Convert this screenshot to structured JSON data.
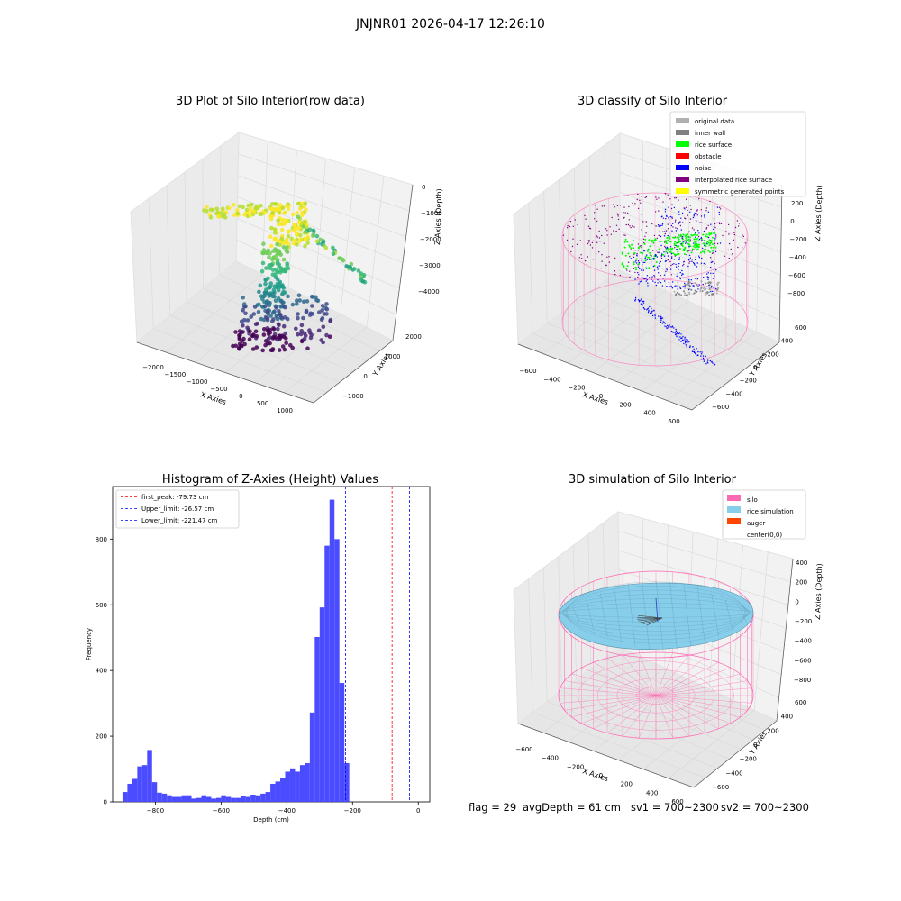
{
  "figure": {
    "suptitle": "JNJNR01 2026-04-17 12:26:10"
  },
  "footer": {
    "flag": "flag = 29",
    "avg_depth": "avgDepth = 61 cm",
    "sv1": "sv1 = 700~2300",
    "sv2": "sv2 = 700~2300"
  },
  "colors": {
    "silo": "#ff69b4",
    "rice_simulation": "#87ceeb",
    "auger": "#ff4500",
    "original_data": "#b0b0b0",
    "inner_wall": "#808080",
    "rice_surface": "#00ff00",
    "obstacle": "#ff0000",
    "noise": "#0000ff",
    "interpolated_rice_surface": "#800080",
    "symmetric_generated_points": "#ffff00",
    "histogram_bar": "#4b4bff",
    "first_peak_line": "#ff0000",
    "limit_line": "#0000ff"
  },
  "chart_data": [
    {
      "type": "scatter",
      "subtype": "3d",
      "title": "3D Plot of Silo Interior(row data)",
      "xlabel": "X Axies",
      "ylabel": "Y Axies",
      "zlabel": "Z Axies (Depth)",
      "x_ticks": [
        "−2000",
        "−1500",
        "−1000",
        "−500",
        "0",
        "500",
        "1000"
      ],
      "y_ticks": [
        "−1000",
        "0",
        "1000",
        "2000"
      ],
      "z_ticks": [
        "0",
        "−1000",
        "−2000",
        "−3000",
        "−4000"
      ],
      "colormap": "viridis"
    },
    {
      "type": "scatter",
      "subtype": "3d",
      "title": "3D classify of Silo Interior",
      "xlabel": "X Axies",
      "ylabel": "Y Axies",
      "zlabel": "Z Axies (Depth)",
      "x_ticks": [
        "−600",
        "−400",
        "−200",
        "0",
        "200",
        "400",
        "600"
      ],
      "y_ticks": [
        "−600",
        "−400",
        "−200",
        "0",
        "200",
        "400",
        "600"
      ],
      "z_ticks": [
        "200",
        "0",
        "−200",
        "−400",
        "−600",
        "−800"
      ],
      "legend": [
        {
          "label": "original data",
          "color": "#b0b0b0"
        },
        {
          "label": "inner wall",
          "color": "#808080"
        },
        {
          "label": "rice surface",
          "color": "#00ff00"
        },
        {
          "label": "obstacle",
          "color": "#ff0000"
        },
        {
          "label": "noise",
          "color": "#0000ff"
        },
        {
          "label": "interpolated rice surface",
          "color": "#800080"
        },
        {
          "label": "symmetric generated points",
          "color": "#ffff00"
        }
      ],
      "legend_position": "top-right"
    },
    {
      "type": "bar",
      "subtype": "histogram",
      "title": "Histogram of Z-Axies (Height) Values",
      "xlabel": "Depth (cm)",
      "ylabel": "Frequency",
      "xlim": [
        -930,
        35
      ],
      "ylim": [
        0,
        960
      ],
      "x_ticks": [
        -800,
        -600,
        -400,
        -200,
        0
      ],
      "x_tick_labels": [
        "−800",
        "−600",
        "−400",
        "−200",
        "0"
      ],
      "y_ticks": [
        0,
        200,
        400,
        600,
        800
      ],
      "bin_width": 15,
      "bin_start": -900,
      "values": [
        30,
        55,
        70,
        108,
        112,
        158,
        60,
        28,
        25,
        20,
        15,
        15,
        20,
        20,
        10,
        12,
        20,
        15,
        10,
        12,
        20,
        15,
        12,
        12,
        18,
        15,
        22,
        20,
        25,
        30,
        55,
        62,
        72,
        92,
        102,
        92,
        112,
        118,
        272,
        502,
        592,
        780,
        920,
        800,
        362,
        118
      ],
      "reference_lines": [
        {
          "label": "first_peak: -79.73 cm",
          "x": -79.73,
          "color": "#ff0000"
        },
        {
          "label": "Upper_limit: -26.57 cm",
          "x": -26.57,
          "color": "#0000ff"
        },
        {
          "label": "Lower_limit: -221.47 cm",
          "x": -221.47,
          "color": "#0000ff"
        }
      ],
      "legend_position": "top-left"
    },
    {
      "type": "surface",
      "subtype": "3d",
      "title": "3D simulation of Silo Interior",
      "xlabel": "X Axies",
      "ylabel": "Y Axies",
      "zlabel": "Z Axies (Depth)",
      "x_ticks": [
        "−600",
        "−400",
        "−200",
        "0",
        "200",
        "400",
        "600"
      ],
      "y_ticks": [
        "−600",
        "−400",
        "−200",
        "0",
        "200",
        "400",
        "600"
      ],
      "z_ticks": [
        "400",
        "200",
        "0",
        "−200",
        "−400",
        "−600",
        "−800"
      ],
      "legend": [
        {
          "label": "silo",
          "color": "#ff69b4"
        },
        {
          "label": "rice simulation",
          "color": "#87ceeb"
        },
        {
          "label": "auger",
          "color": "#ff4500"
        },
        {
          "label": "center(0,0)",
          "color": "none"
        }
      ],
      "legend_position": "top-right"
    }
  ]
}
